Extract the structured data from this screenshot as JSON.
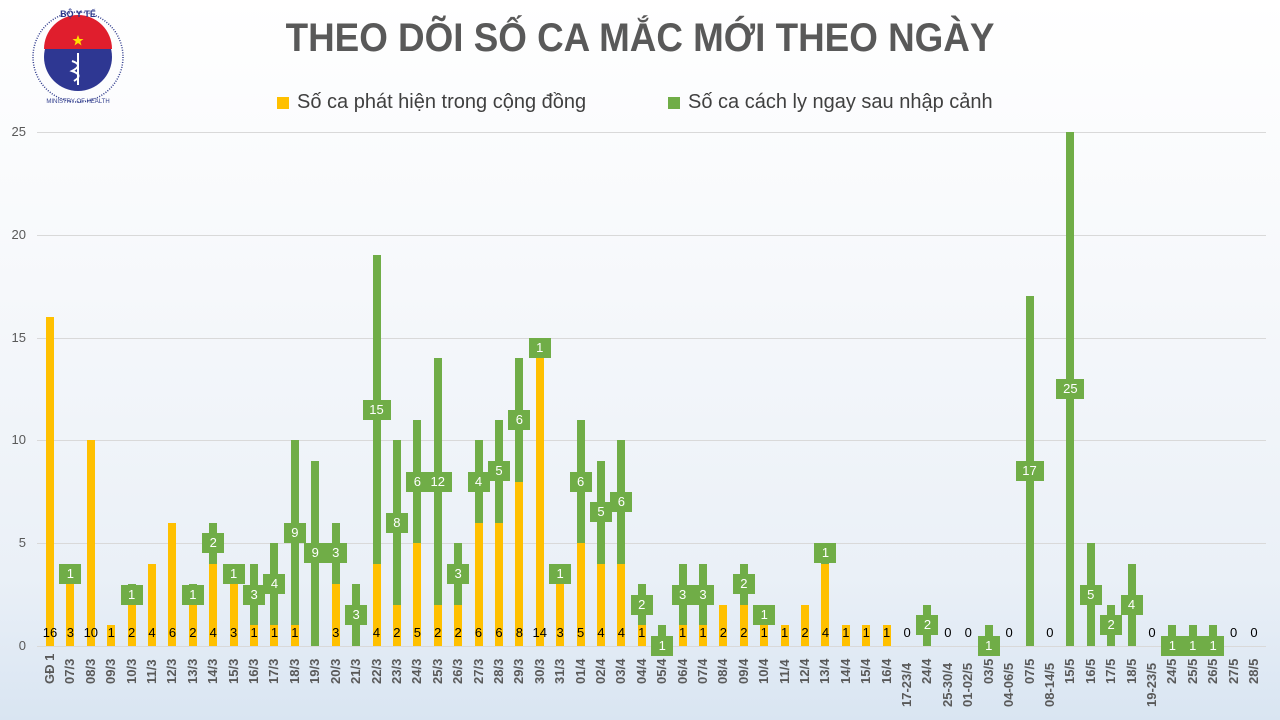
{
  "header": {
    "logo": {
      "top_text": "BỘ Y TẾ",
      "bottom_text": "MINISTRY OF HEALTH"
    },
    "title": "THEO DÕI SỐ CA MẮC MỚI THEO NGÀY"
  },
  "legend": [
    {
      "label": "Số ca phát hiện trong cộng đồng",
      "color": "#ffc000"
    },
    {
      "label": "Số ca cách ly ngay sau nhập cảnh",
      "color": "#70ad47"
    }
  ],
  "colors": {
    "community": "#ffc000",
    "quarantine": "#70ad47",
    "grid": "#d9d9d9",
    "text": "#595959"
  },
  "chart_data": {
    "type": "bar",
    "stacked": true,
    "title": "THEO DÕI SỐ CA MẮC MỚI THEO NGÀY",
    "xlabel": "",
    "ylabel": "",
    "ylim": [
      0,
      25
    ],
    "yticks": [
      0,
      5,
      10,
      15,
      20,
      25
    ],
    "grid": true,
    "legend_position": "top",
    "categories": [
      "GĐ 1",
      "07/3",
      "08/3",
      "09/3",
      "10/3",
      "11/3",
      "12/3",
      "13/3",
      "14/3",
      "15/3",
      "16/3",
      "17/3",
      "18/3",
      "19/3",
      "20/3",
      "21/3",
      "22/3",
      "23/3",
      "24/3",
      "25/3",
      "26/3",
      "27/3",
      "28/3",
      "29/3",
      "30/3",
      "31/3",
      "01/4",
      "02/4",
      "03/4",
      "04/4",
      "05/4",
      "06/4",
      "07/4",
      "08/4",
      "09/4",
      "10/4",
      "11/4",
      "12/4",
      "13/4",
      "14/4",
      "15/4",
      "16/4",
      "17-23/4",
      "24/4",
      "25-30/4",
      "01-02/5",
      "03/5",
      "04-06/5",
      "07/5",
      "08-14/5",
      "15/5",
      "16/5",
      "17/5",
      "18/5",
      "19-23/5",
      "24/5",
      "25/5",
      "26/5",
      "27/5",
      "28/5"
    ],
    "series": [
      {
        "name": "Số ca phát hiện trong cộng đồng",
        "color": "#ffc000",
        "values": [
          16,
          3,
          10,
          1,
          2,
          4,
          6,
          2,
          4,
          3,
          1,
          1,
          1,
          0,
          3,
          0,
          4,
          2,
          5,
          2,
          2,
          6,
          6,
          8,
          14,
          3,
          5,
          4,
          4,
          1,
          0,
          1,
          1,
          2,
          2,
          1,
          1,
          2,
          4,
          1,
          1,
          1,
          0,
          0,
          0,
          0,
          0,
          0,
          0,
          0,
          0,
          0,
          0,
          0,
          0,
          0,
          0,
          0,
          0,
          0
        ]
      },
      {
        "name": "Số ca cách ly ngay sau nhập cảnh",
        "color": "#70ad47",
        "values": [
          0,
          1,
          0,
          0,
          1,
          0,
          0,
          1,
          2,
          1,
          3,
          4,
          9,
          9,
          3,
          3,
          15,
          8,
          6,
          12,
          3,
          4,
          5,
          6,
          1,
          1,
          6,
          5,
          6,
          2,
          1,
          3,
          3,
          0,
          2,
          1,
          0,
          0,
          1,
          0,
          0,
          0,
          0,
          2,
          0,
          0,
          1,
          0,
          17,
          0,
          25,
          5,
          2,
          4,
          0,
          1,
          1,
          1,
          0,
          0
        ]
      }
    ]
  }
}
